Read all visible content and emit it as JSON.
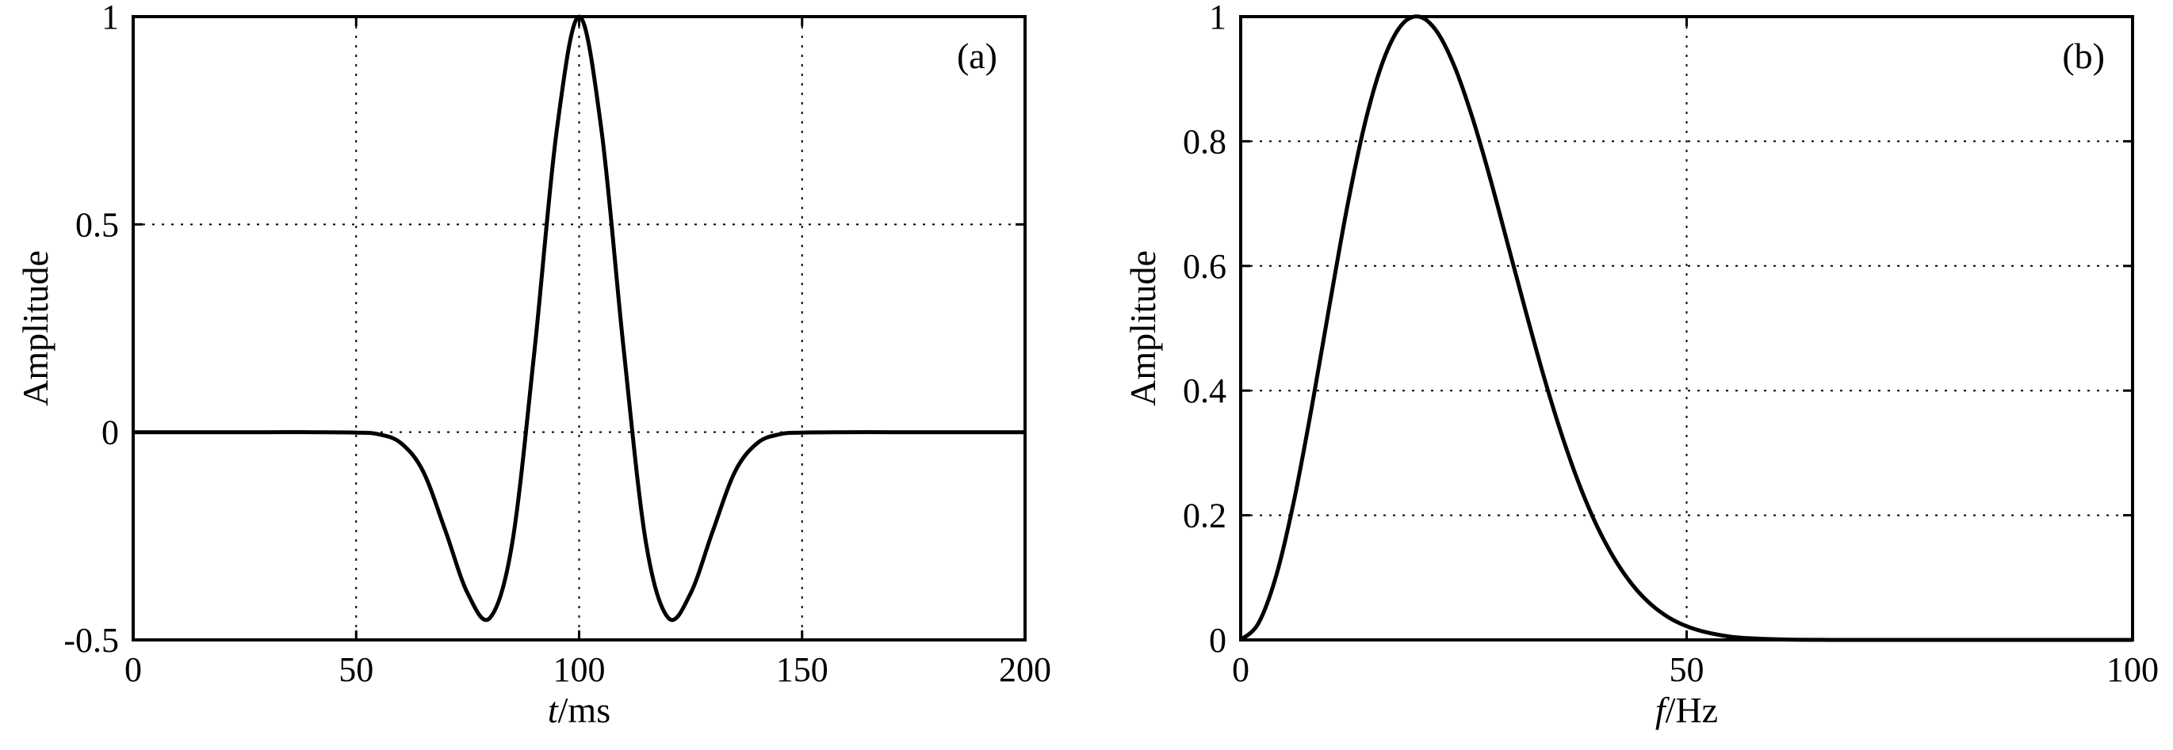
{
  "chart_data": [
    {
      "type": "line",
      "panel_tag": "(a)",
      "ylabel": "Amplitude",
      "xlabel_italic": "t",
      "xlabel_unit": "/ms",
      "xlim": [
        0,
        200
      ],
      "ylim": [
        -0.5,
        1
      ],
      "xticks": [
        0,
        50,
        100,
        150,
        200
      ],
      "yticks": [
        -0.5,
        0,
        0.5,
        1
      ],
      "xtick_labels": [
        "0",
        "50",
        "100",
        "150",
        "200"
      ],
      "ytick_labels": [
        "-0.5",
        "0",
        "0.5",
        "1"
      ],
      "grid": true,
      "series": [
        {
          "x": [
            0,
            10,
            20,
            30,
            40,
            50,
            55,
            60,
            65,
            70,
            75,
            80,
            85,
            90,
            95,
            100,
            105,
            110,
            115,
            120,
            125,
            130,
            135,
            140,
            145,
            150,
            160,
            170,
            180,
            190,
            200
          ],
          "y": [
            0,
            0,
            0,
            0,
            0,
            -0.001,
            -0.005,
            -0.026,
            -0.094,
            -0.237,
            -0.388,
            -0.447,
            -0.267,
            0.198,
            0.728,
            1.0,
            0.728,
            0.198,
            -0.267,
            -0.447,
            -0.388,
            -0.237,
            -0.094,
            -0.026,
            -0.005,
            -0.001,
            0,
            0,
            0,
            0,
            0
          ]
        }
      ]
    },
    {
      "type": "line",
      "panel_tag": "(b)",
      "ylabel": "Amplitude",
      "xlabel_italic": "f",
      "xlabel_unit": "/Hz",
      "xlim": [
        0,
        100
      ],
      "ylim": [
        0,
        1
      ],
      "xticks": [
        0,
        50,
        100
      ],
      "yticks": [
        0,
        0.2,
        0.4,
        0.6,
        0.8,
        1
      ],
      "xtick_labels": [
        "0",
        "50",
        "100"
      ],
      "ytick_labels": [
        "0",
        "0.2",
        "0.4",
        "0.6",
        "0.8",
        "1"
      ],
      "grid": true,
      "series": [
        {
          "x": [
            0,
            2,
            4,
            6,
            8,
            10,
            12,
            14,
            16,
            18,
            20,
            22,
            24,
            26,
            28,
            30,
            32,
            34,
            36,
            38,
            40,
            42,
            44,
            46,
            48,
            50,
            52,
            55,
            58,
            61,
            65,
            70,
            80,
            90,
            100
          ],
          "y": [
            0,
            0.027,
            0.104,
            0.225,
            0.376,
            0.54,
            0.699,
            0.833,
            0.93,
            0.986,
            1.0,
            0.976,
            0.919,
            0.837,
            0.739,
            0.632,
            0.525,
            0.422,
            0.329,
            0.248,
            0.181,
            0.128,
            0.087,
            0.057,
            0.036,
            0.022,
            0.013,
            0.005,
            0.002,
            0.0006,
            0.0001,
            0,
            0,
            0,
            0
          ]
        }
      ]
    }
  ]
}
